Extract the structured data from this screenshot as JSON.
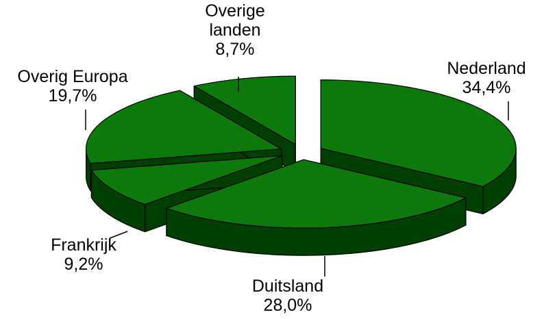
{
  "chart_data": {
    "type": "pie3d",
    "categories": [
      "Nederland",
      "Duitsland",
      "Frankrijk",
      "Overig Europa",
      "Overige landen"
    ],
    "values": [
      34.4,
      28.0,
      9.2,
      19.7,
      8.7
    ],
    "value_labels": [
      "34,4%",
      "28,0%",
      "9,2%",
      "19,7%",
      "8,7%"
    ],
    "color": "#0b7a0b",
    "side_color": "#003f00"
  }
}
